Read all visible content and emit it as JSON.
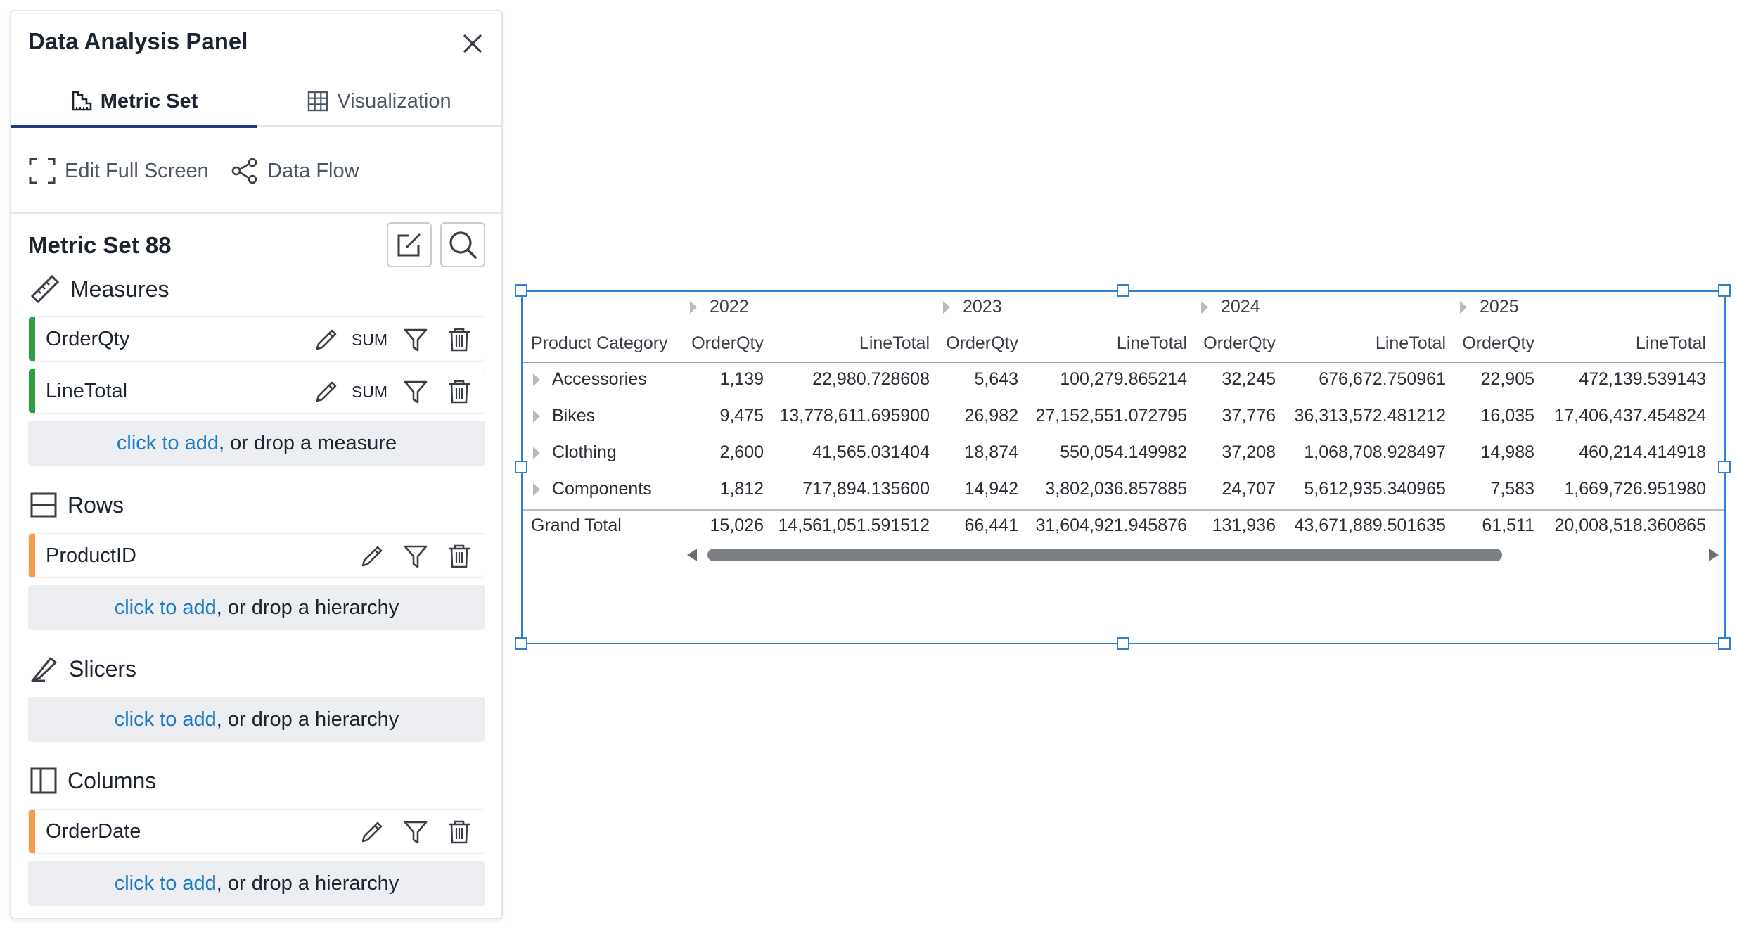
{
  "panel": {
    "title": "Data Analysis Panel",
    "tabs": [
      {
        "label": "Metric Set",
        "active": true
      },
      {
        "label": "Visualization",
        "active": false
      }
    ],
    "toolbar": {
      "edit_full_screen": "Edit Full Screen",
      "data_flow": "Data Flow"
    },
    "metric_set_title": "Metric Set 88",
    "sections": {
      "measures": {
        "title": "Measures",
        "fields": [
          {
            "name": "OrderQty",
            "aggregation": "SUM",
            "color": "#2e9e45"
          },
          {
            "name": "LineTotal",
            "aggregation": "SUM",
            "color": "#2e9e45"
          }
        ],
        "add_link": "click to add",
        "add_rest": ", or drop a measure"
      },
      "rows": {
        "title": "Rows",
        "fields": [
          {
            "name": "ProductID",
            "color": "#f59c4a"
          }
        ],
        "add_link": "click to add",
        "add_rest": ", or drop a hierarchy"
      },
      "slicers": {
        "title": "Slicers",
        "add_link": "click to add",
        "add_rest": ", or drop a hierarchy"
      },
      "columns": {
        "title": "Columns",
        "fields": [
          {
            "name": "OrderDate",
            "color": "#f59c4a"
          }
        ],
        "add_link": "click to add",
        "add_rest": ", or drop a hierarchy"
      }
    }
  },
  "pivot": {
    "years": [
      "2022",
      "2023",
      "2024",
      "2025"
    ],
    "row_header": "Product Category",
    "measure_headers": [
      "OrderQty",
      "LineTotal"
    ],
    "rows": [
      {
        "label": "Accessories",
        "values": [
          "1,139",
          "22,980.728608",
          "5,643",
          "100,279.865214",
          "32,245",
          "676,672.750961",
          "22,905",
          "472,139.539143"
        ]
      },
      {
        "label": "Bikes",
        "values": [
          "9,475",
          "13,778,611.695900",
          "26,982",
          "27,152,551.072795",
          "37,776",
          "36,313,572.481212",
          "16,035",
          "17,406,437.454824"
        ]
      },
      {
        "label": "Clothing",
        "values": [
          "2,600",
          "41,565.031404",
          "18,874",
          "550,054.149982",
          "37,208",
          "1,068,708.928497",
          "14,988",
          "460,214.414918"
        ]
      },
      {
        "label": "Components",
        "values": [
          "1,812",
          "717,894.135600",
          "14,942",
          "3,802,036.857885",
          "24,707",
          "5,612,935.340965",
          "7,583",
          "1,669,726.951980"
        ]
      }
    ],
    "grand_total": {
      "label": "Grand Total",
      "values": [
        "15,026",
        "14,561,051.591512",
        "66,441",
        "31,604,921.945876",
        "131,936",
        "43,671,889.501635",
        "61,511",
        "20,008,518.360865"
      ]
    },
    "accent_color": "#2f80d1"
  }
}
